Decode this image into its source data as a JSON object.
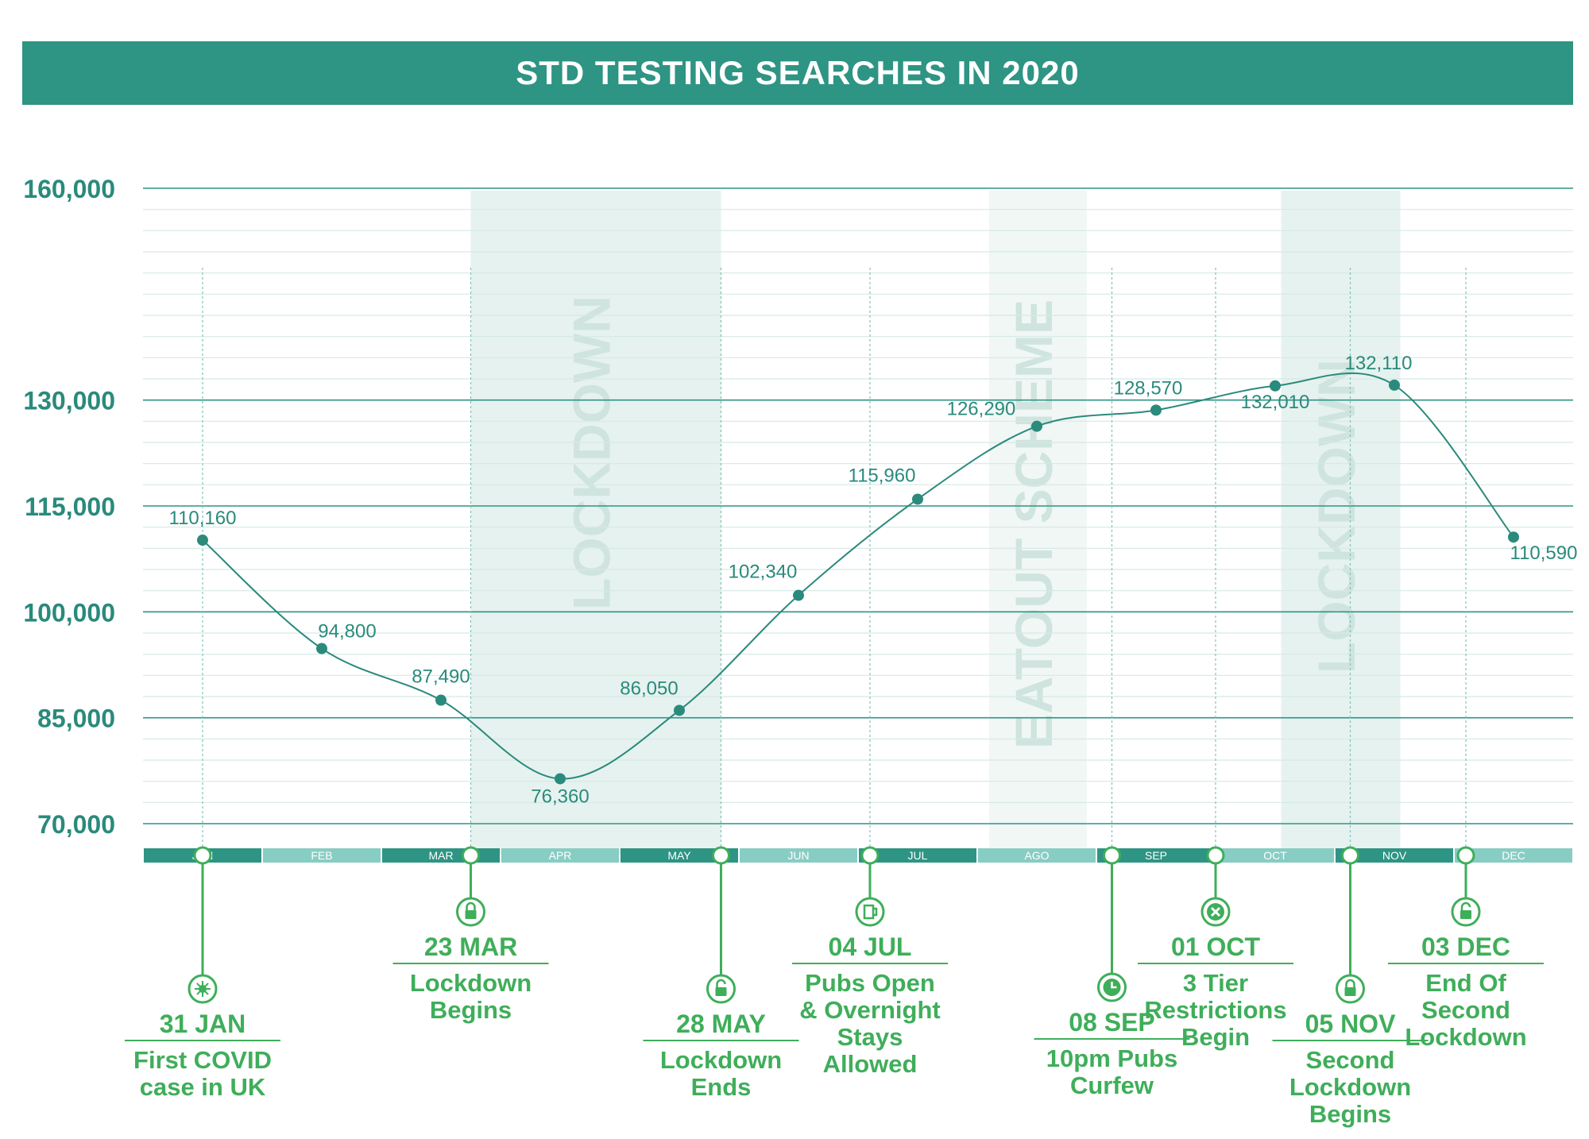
{
  "chart_data": {
    "type": "line",
    "title": "STD TESTING SEARCHES IN 2020",
    "categories": [
      "JAN",
      "FEB",
      "MAR",
      "APR",
      "MAY",
      "JUN",
      "JUL",
      "AGO",
      "SEP",
      "OCT",
      "NOV",
      "DEC"
    ],
    "ylim": [
      70000,
      160000
    ],
    "yticks": [
      70000,
      85000,
      100000,
      115000,
      130000,
      160000
    ],
    "ytick_labels": [
      "70,000",
      "85,000",
      "100,000",
      "115,000",
      "130,000",
      "160,000"
    ],
    "grid": true,
    "series": [
      {
        "values": [
          110160,
          94800,
          87490,
          76360,
          86050,
          102340,
          115960,
          126290,
          128570,
          132010,
          132110,
          110590
        ],
        "labels": [
          "110,160",
          "94,800",
          "87,490",
          "76,360",
          "86,050",
          "102,340",
          "115,960",
          "126,290",
          "128,570",
          "132,010",
          "132,110",
          "110,590"
        ]
      }
    ],
    "bands": [
      {
        "label": "LOCKDOWN",
        "from": 2.75,
        "to": 4.85
      },
      {
        "label": "EATOUT SCHEME",
        "from": 7.1,
        "to": 7.92
      },
      {
        "label": "LOCKDOWN",
        "from": 9.55,
        "to": 10.55
      }
    ],
    "events": [
      {
        "pos": 0.5,
        "icon": "virus-icon",
        "date": "31 JAN",
        "text": [
          "First COVID",
          "case in UK"
        ],
        "side": "low"
      },
      {
        "pos": 2.75,
        "icon": "lock-icon",
        "date": "23 MAR",
        "text": [
          "Lockdown",
          "Begins"
        ],
        "side": "high"
      },
      {
        "pos": 4.85,
        "icon": "unlock-icon",
        "date": "28 MAY",
        "text": [
          "Lockdown",
          "Ends"
        ],
        "side": "low"
      },
      {
        "pos": 6.1,
        "icon": "beer-icon",
        "date": "04 JUL",
        "text": [
          "Pubs Open",
          "& Overnight",
          "Stays",
          "Allowed"
        ],
        "side": "high"
      },
      {
        "pos": 8.13,
        "icon": "clock-icon",
        "date": "08 SEP",
        "text": [
          "10pm Pubs",
          "Curfew"
        ],
        "side": "low"
      },
      {
        "pos": 9.0,
        "icon": "cancel-icon",
        "date": "01 OCT",
        "text": [
          "3 Tier",
          "Restrictions",
          "Begin"
        ],
        "side": "high"
      },
      {
        "pos": 10.13,
        "icon": "lock-icon",
        "date": "05 NOV",
        "text": [
          "Second",
          "Lockdown",
          "Begins"
        ],
        "side": "low"
      },
      {
        "pos": 11.1,
        "icon": "unlock-icon",
        "date": "03 DEC",
        "text": [
          "End Of",
          "Second",
          "Lockdown"
        ],
        "side": "high"
      }
    ],
    "colors": {
      "title_bar": "#2e9484",
      "line": "#2a8a7c",
      "axis_text": "#2a8a7c",
      "event": "#3fae5a",
      "band": "#e6f2ef",
      "band_text": "#cfe4df",
      "month_dark": "#2e9484",
      "month_light": "#88cdc4"
    }
  }
}
